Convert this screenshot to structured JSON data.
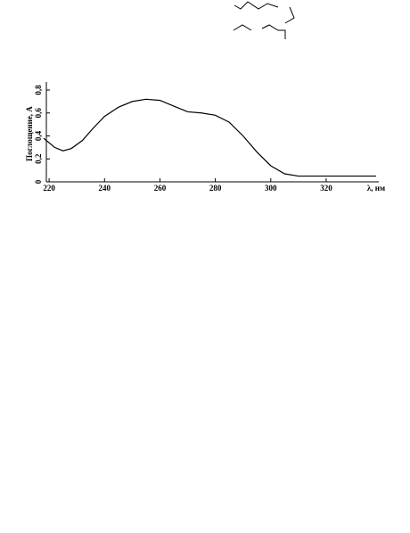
{
  "chart_data": {
    "type": "line",
    "y_label": "Поглощение, A",
    "x_label": "λ, нм",
    "x": [
      218,
      222,
      225,
      228,
      232,
      236,
      240,
      245,
      250,
      255,
      260,
      265,
      270,
      275,
      280,
      285,
      290,
      295,
      300,
      305,
      310,
      315,
      320,
      330,
      338
    ],
    "series": [
      {
        "color": "#000000",
        "values": [
          0.38,
          0.3,
          0.27,
          0.29,
          0.36,
          0.47,
          0.57,
          0.65,
          0.7,
          0.72,
          0.71,
          0.66,
          0.61,
          0.6,
          0.58,
          0.52,
          0.4,
          0.26,
          0.14,
          0.07,
          0.05,
          0.05,
          0.05,
          0.05,
          0.05
        ]
      }
    ],
    "xlim": [
      219,
      339
    ],
    "ylim": [
      0,
      0.87
    ],
    "xticks": [
      220,
      240,
      260,
      280,
      300,
      320
    ],
    "yticks": [
      0,
      {
        "value": 0.2,
        "label": "0,2"
      },
      {
        "value": 0.4,
        "label": "0,4"
      },
      {
        "value": 0.6,
        "label": "0,6"
      },
      {
        "value": 0.8,
        "label": "0,8"
      }
    ]
  }
}
